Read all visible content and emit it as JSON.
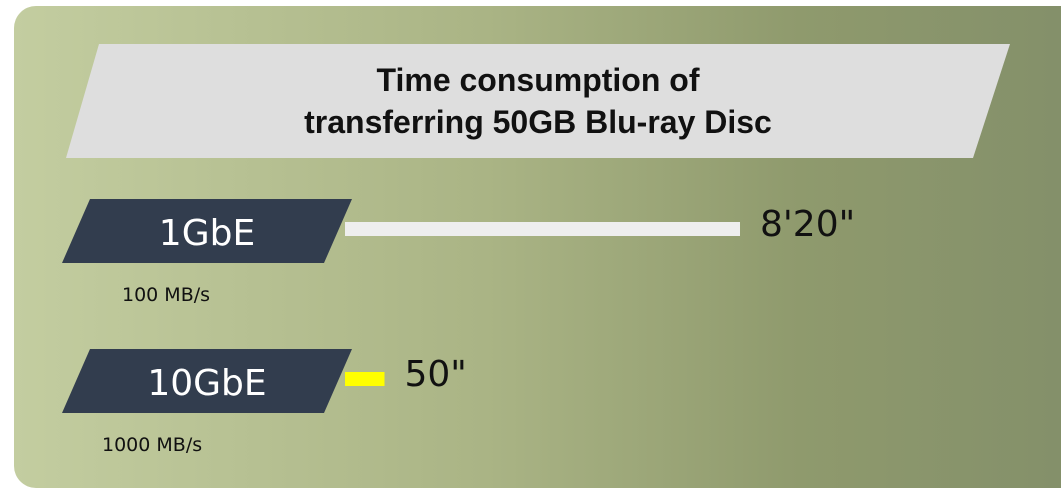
{
  "colors": {
    "panel_gradient_start": "#c3cda0",
    "panel_gradient_end": "#84906a",
    "title_banner": "#dedede",
    "tag_fill": "#323d4e",
    "bar_1gbe": "#eeeeee",
    "bar_10gbe": "#ffff00"
  },
  "chart_data": {
    "type": "bar",
    "orientation": "horizontal",
    "title": "Time consumption of\ntransferring  50GB Blu-ray Disc",
    "categories": [
      "1GbE",
      "10GbE"
    ],
    "rates": [
      "100 MB/s",
      "1000 MB/s"
    ],
    "values_seconds": [
      500,
      50
    ],
    "value_labels": [
      "8'20\"",
      "50\""
    ],
    "bar_colors": [
      "#eeeeee",
      "#ffff00"
    ],
    "grid": false,
    "legend": "none"
  }
}
